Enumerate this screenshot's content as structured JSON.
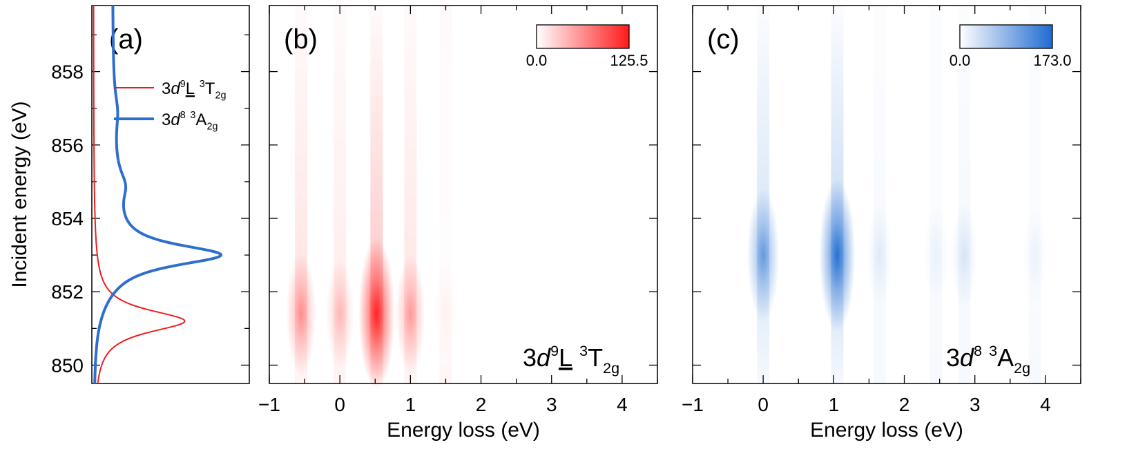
{
  "chart_data": [
    {
      "panel": "a",
      "type": "line",
      "panel_label": "(a)",
      "ylabel": "Incident energy (eV)",
      "ylim": [
        849.5,
        859.8
      ],
      "yticks": [
        850,
        852,
        854,
        856,
        858
      ],
      "series": [
        {
          "name": "3d9L 3T2g",
          "legend": {
            "base": "3",
            "ital": "d",
            "sup1": "9",
            "main": "L",
            "sup2": "3",
            "main2": "T",
            "sub": "2g",
            "underline": true
          },
          "color": "#ee1c1c",
          "kind": "lorentz",
          "params": {
            "center": 851.2,
            "gamma": 0.38,
            "peak": 0.58,
            "baseline": 0.01,
            "edge": 0.0
          },
          "peak_energy_eV": 851.2
        },
        {
          "name": "3d8 3A2g",
          "legend": {
            "base": "3",
            "ital": "d",
            "sup1": "8",
            "main": "",
            "sup2": "3",
            "main2": "A",
            "sub": "2g",
            "underline": false
          },
          "color": "#2e6fce",
          "kind": "xas",
          "params": {
            "baseline": 0.01,
            "edge": 0.12,
            "peaks": [
              [
                853.0,
                0.35,
                0.7
              ],
              [
                854.9,
                0.5,
                0.06
              ],
              [
                856.9,
                0.6,
                0.025
              ]
            ]
          },
          "peak_energy_eV": 853.0
        }
      ]
    },
    {
      "panel": "b",
      "type": "heatmap",
      "panel_label": "(b)",
      "xlabel": "Energy loss (eV)",
      "xlim": [
        -1.0,
        4.5
      ],
      "ylim": [
        849.5,
        859.8
      ],
      "xticks": [
        -1,
        0,
        1,
        2,
        3,
        4
      ],
      "state_label": {
        "base": "3",
        "ital": "d",
        "sup1": "9",
        "main": "L",
        "sup2": "3",
        "main2": "T",
        "sub": "2g",
        "underline": true
      },
      "colorbar": {
        "min": 0.0,
        "max": 125.5,
        "min_label": "0.0",
        "max_label": "125.5",
        "color": "#ff1a1a"
      },
      "peaks": [
        {
          "loss_eV": -0.55,
          "incident_eV": 851.4,
          "intensity": 0.45
        },
        {
          "loss_eV": 0.0,
          "incident_eV": 851.4,
          "intensity": 0.28
        },
        {
          "loss_eV": 0.52,
          "incident_eV": 851.4,
          "intensity": 1.0
        },
        {
          "loss_eV": 1.0,
          "incident_eV": 851.4,
          "intensity": 0.4
        },
        {
          "loss_eV": 1.5,
          "incident_eV": 851.5,
          "intensity": 0.05
        }
      ]
    },
    {
      "panel": "c",
      "type": "heatmap",
      "panel_label": "(c)",
      "xlabel": "Energy loss (eV)",
      "xlim": [
        -1.0,
        4.5
      ],
      "ylim": [
        849.5,
        859.8
      ],
      "xticks": [
        -1,
        0,
        1,
        2,
        3,
        4
      ],
      "state_label": {
        "base": "3",
        "ital": "d",
        "sup1": "8",
        "main": "",
        "sup2": "3",
        "main2": "A",
        "sub": "2g",
        "underline": false
      },
      "colorbar": {
        "min": 0.0,
        "max": 173.0,
        "min_label": "0.0",
        "max_label": "173.0",
        "color": "#1f6bd0"
      },
      "peaks": [
        {
          "loss_eV": 0.0,
          "incident_eV": 853.0,
          "intensity": 0.65
        },
        {
          "loss_eV": 1.05,
          "incident_eV": 853.0,
          "intensity": 1.0
        },
        {
          "loss_eV": 1.65,
          "incident_eV": 853.0,
          "intensity": 0.12
        },
        {
          "loss_eV": 2.45,
          "incident_eV": 853.0,
          "intensity": 0.08
        },
        {
          "loss_eV": 2.85,
          "incident_eV": 853.0,
          "intensity": 0.15
        },
        {
          "loss_eV": 3.85,
          "incident_eV": 853.0,
          "intensity": 0.07
        }
      ]
    }
  ]
}
